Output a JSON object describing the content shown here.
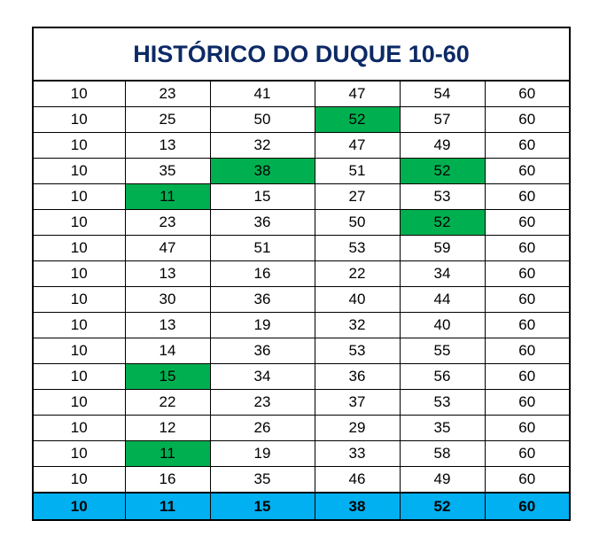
{
  "table": {
    "title": "HISTÓRICO DO DUQUE 10-60",
    "rows": [
      [
        10,
        23,
        41,
        47,
        54,
        60
      ],
      [
        10,
        25,
        50,
        52,
        57,
        60
      ],
      [
        10,
        13,
        32,
        47,
        49,
        60
      ],
      [
        10,
        35,
        38,
        51,
        52,
        60
      ],
      [
        10,
        11,
        15,
        27,
        53,
        60
      ],
      [
        10,
        23,
        36,
        50,
        52,
        60
      ],
      [
        10,
        47,
        51,
        53,
        59,
        60
      ],
      [
        10,
        13,
        16,
        22,
        34,
        60
      ],
      [
        10,
        30,
        36,
        40,
        44,
        60
      ],
      [
        10,
        13,
        19,
        32,
        40,
        60
      ],
      [
        10,
        14,
        36,
        53,
        55,
        60
      ],
      [
        10,
        15,
        34,
        36,
        56,
        60
      ],
      [
        10,
        22,
        23,
        37,
        53,
        60
      ],
      [
        10,
        12,
        26,
        29,
        35,
        60
      ],
      [
        10,
        11,
        19,
        33,
        58,
        60
      ],
      [
        10,
        16,
        35,
        46,
        49,
        60
      ]
    ],
    "footer": [
      10,
      11,
      15,
      38,
      52,
      60
    ]
  }
}
